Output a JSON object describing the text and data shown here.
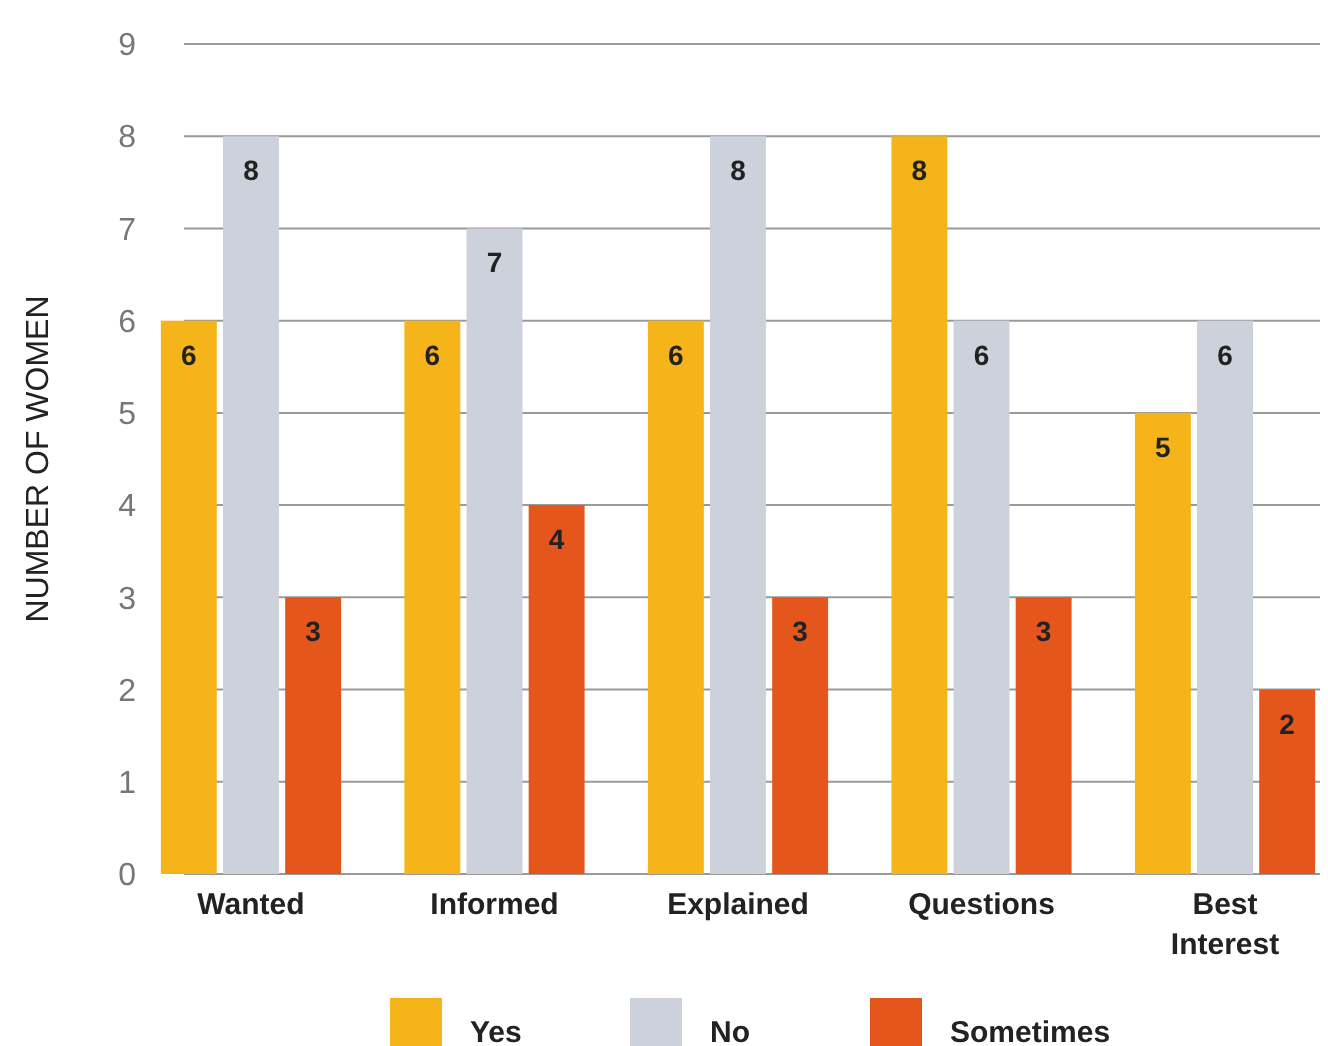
{
  "chart_data": {
    "type": "bar",
    "ylabel": "NUMBER OF WOMEN",
    "categories": [
      "Wanted",
      "Informed",
      "Explained",
      "Questions",
      "Best Interest"
    ],
    "series": [
      {
        "name": "Yes",
        "color": "#f4b41a",
        "values": [
          6,
          6,
          6,
          8,
          5
        ]
      },
      {
        "name": "No",
        "color": "#cdd1dc",
        "values": [
          8,
          7,
          8,
          6,
          6
        ]
      },
      {
        "name": "Sometimes",
        "color": "#e5561c",
        "values": [
          3,
          4,
          3,
          3,
          2
        ]
      }
    ],
    "ylim": [
      0,
      9
    ],
    "yticks": [
      0,
      1,
      2,
      3,
      4,
      5,
      6,
      7,
      8,
      9
    ],
    "grid": "y",
    "legend": "bottom",
    "data_labels": true
  }
}
